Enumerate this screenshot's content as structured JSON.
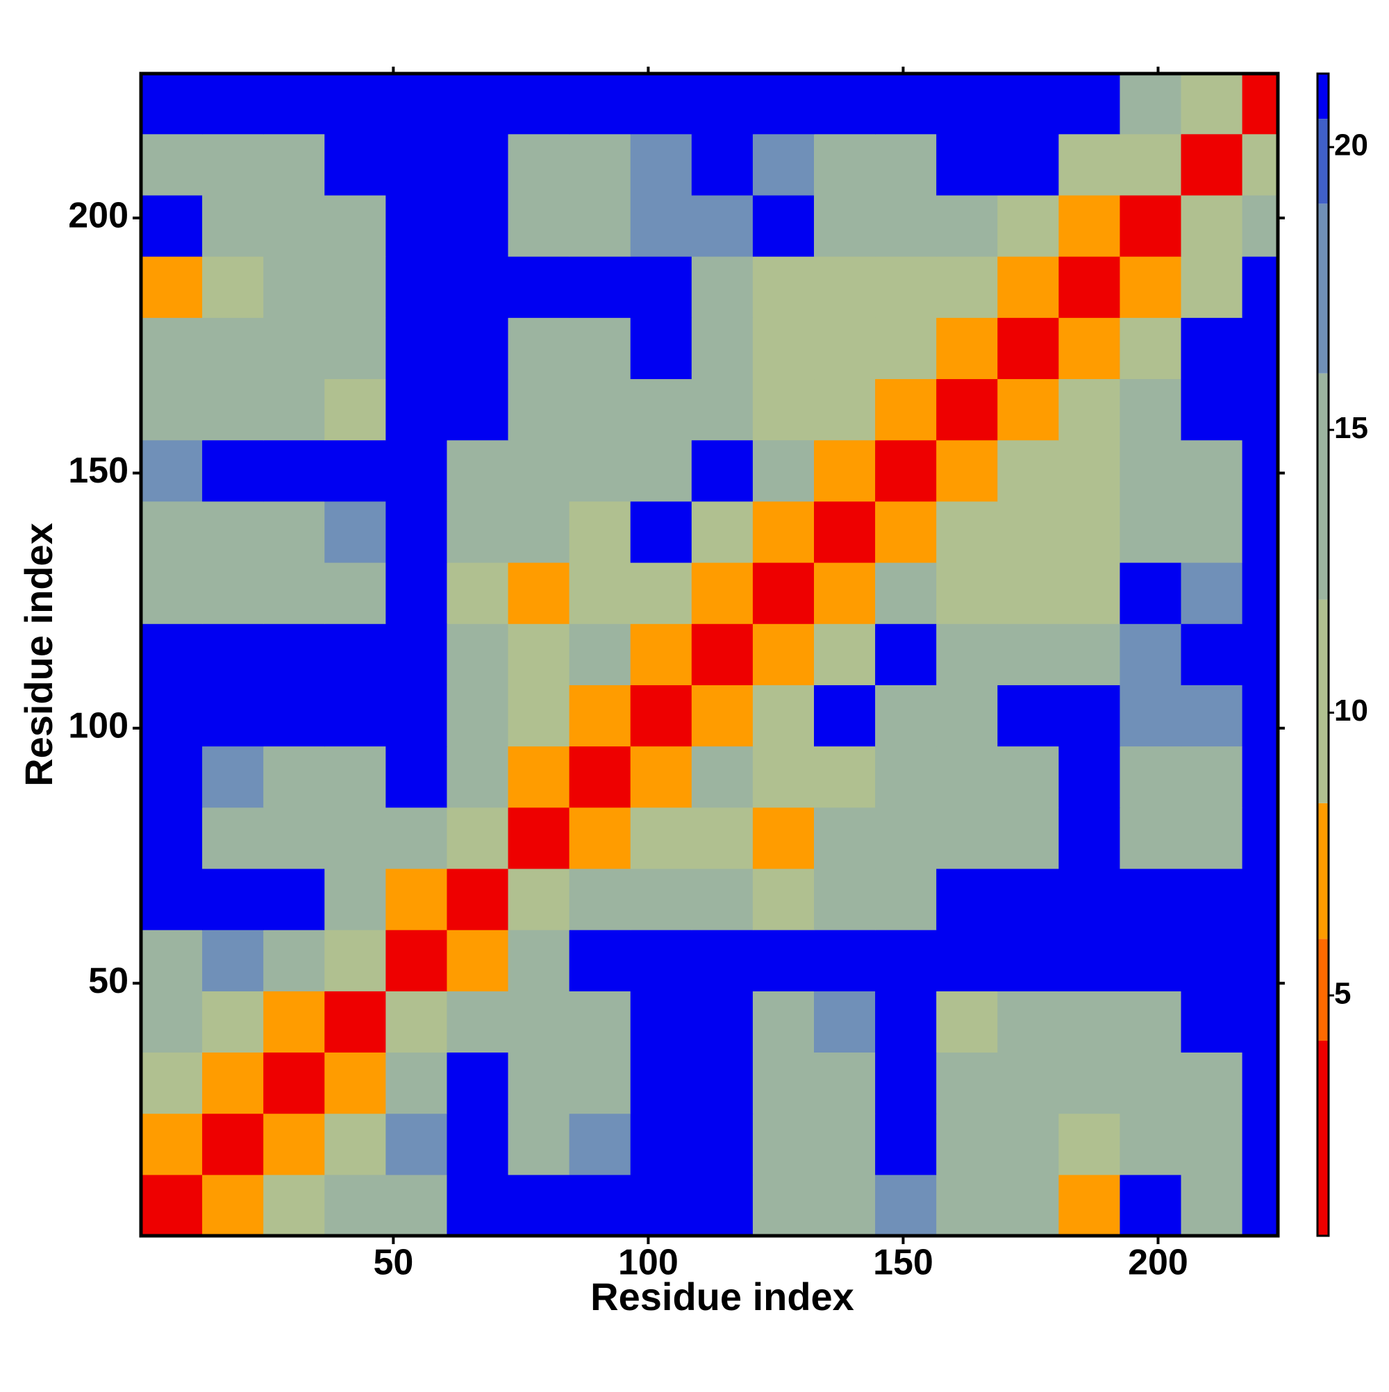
{
  "chart_data": {
    "type": "heatmap",
    "xlabel": "Residue index",
    "ylabel": "Residue index",
    "x": [
      6.5,
      18.5,
      30.5,
      42.5,
      54.5,
      66.5,
      78.5,
      90.5,
      102.5,
      114.5,
      126.5,
      138.5,
      150.5,
      162.5,
      174.5,
      186.5,
      198.5,
      210.5,
      222.5
    ],
    "y": [
      6.5,
      18.5,
      30.5,
      42.5,
      54.5,
      66.5,
      78.5,
      90.5,
      102.5,
      114.5,
      126.5,
      138.5,
      150.5,
      162.5,
      174.5,
      186.5,
      198.5,
      210.5,
      222.5
    ],
    "z": [
      [
        3,
        7,
        11,
        12,
        15,
        21,
        21,
        21,
        21,
        21,
        14,
        14,
        17,
        13,
        14,
        8,
        21,
        15,
        21
      ],
      [
        7,
        3,
        7,
        11,
        16,
        21,
        14,
        16,
        21,
        21,
        14,
        15,
        21,
        12,
        15,
        11,
        13,
        12,
        21
      ],
      [
        11,
        7,
        3,
        8,
        12,
        21,
        13,
        13,
        21,
        21,
        15,
        15,
        21,
        12,
        13,
        12,
        12,
        12,
        21
      ],
      [
        12,
        11,
        8,
        3,
        9,
        12,
        15,
        12,
        21,
        21,
        15,
        16,
        21,
        11,
        13,
        12,
        14,
        21,
        21
      ],
      [
        15,
        16,
        12,
        9,
        3,
        6,
        13,
        21,
        21,
        21,
        21,
        21,
        21,
        21,
        21,
        21,
        21,
        21,
        21
      ],
      [
        21,
        21,
        21,
        12,
        6,
        3,
        9,
        12,
        13,
        14,
        11,
        13,
        13,
        21,
        21,
        21,
        21,
        21,
        21
      ],
      [
        21,
        14,
        13,
        15,
        13,
        9,
        3,
        7,
        9,
        11,
        8,
        13,
        12,
        13,
        15,
        21,
        13,
        12,
        21
      ],
      [
        21,
        16,
        13,
        12,
        21,
        12,
        7,
        3,
        8,
        12,
        11,
        11,
        12,
        14,
        15,
        21,
        13,
        14,
        21
      ],
      [
        21,
        21,
        21,
        21,
        21,
        13,
        9,
        8,
        3,
        6,
        10,
        21,
        14,
        15,
        21,
        21,
        17,
        18,
        21
      ],
      [
        21,
        21,
        21,
        21,
        21,
        14,
        11,
        12,
        6,
        3,
        8,
        10,
        21,
        12,
        12,
        14,
        18,
        21,
        21
      ],
      [
        14,
        14,
        15,
        15,
        21,
        11,
        8,
        11,
        10,
        8,
        3,
        8,
        12,
        9,
        11,
        11,
        21,
        16,
        21
      ],
      [
        14,
        15,
        15,
        16,
        21,
        13,
        13,
        11,
        21,
        10,
        8,
        3,
        8,
        9,
        9,
        9,
        15,
        14,
        21
      ],
      [
        17,
        21,
        21,
        21,
        21,
        13,
        12,
        12,
        14,
        21,
        12,
        8,
        3,
        8,
        11,
        9,
        14,
        14,
        21
      ],
      [
        13,
        12,
        12,
        11,
        21,
        21,
        13,
        14,
        15,
        12,
        9,
        9,
        8,
        3,
        8,
        9,
        12,
        21,
        21
      ],
      [
        14,
        15,
        13,
        13,
        21,
        21,
        15,
        15,
        21,
        12,
        11,
        9,
        11,
        8,
        3,
        8,
        11,
        21,
        21
      ],
      [
        8,
        11,
        12,
        12,
        21,
        21,
        21,
        21,
        21,
        14,
        11,
        9,
        9,
        9,
        8,
        3,
        8,
        10,
        21
      ],
      [
        21,
        13,
        12,
        14,
        21,
        21,
        13,
        13,
        17,
        18,
        21,
        15,
        14,
        12,
        11,
        8,
        3,
        9,
        12
      ],
      [
        15,
        12,
        12,
        21,
        21,
        21,
        12,
        14,
        18,
        21,
        16,
        14,
        14,
        21,
        21,
        10,
        9,
        3,
        10
      ],
      [
        21,
        21,
        21,
        21,
        21,
        21,
        21,
        21,
        21,
        21,
        21,
        21,
        21,
        21,
        21,
        21,
        12,
        10,
        3
      ]
    ],
    "xlim": [
      0.5,
      223.5
    ],
    "ylim": [
      0.5,
      228.3
    ],
    "xticks": [
      50,
      100,
      150,
      200
    ],
    "yticks": [
      50,
      100,
      150,
      200
    ],
    "zlim": [
      0.75,
      21.3
    ],
    "zticks": [
      5,
      10,
      15,
      20
    ],
    "colorscale": [
      [
        0.75,
        "#ee0000"
      ],
      [
        4.2,
        "#ff6a00"
      ],
      [
        6,
        "#ff9c00"
      ],
      [
        8.4,
        "#b0c090"
      ],
      [
        12,
        "#9cb4a0"
      ],
      [
        16,
        "#7090b8"
      ],
      [
        19,
        "#4060c8"
      ],
      [
        20.5,
        "#0000f2"
      ]
    ]
  }
}
